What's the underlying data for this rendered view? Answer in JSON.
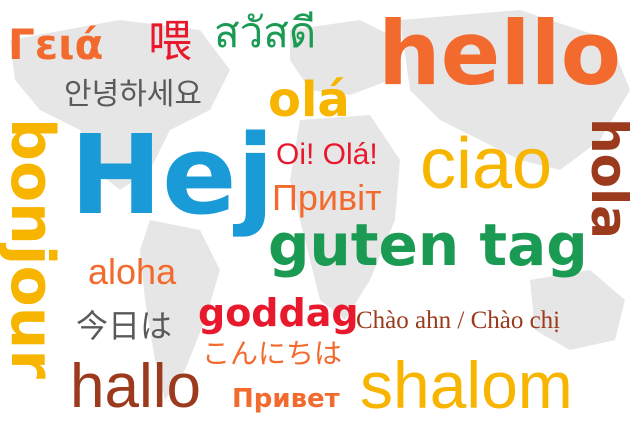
{
  "colors": {
    "blue": "#1a9bd7",
    "orange": "#f26a2e",
    "yellow": "#f7b500",
    "green": "#1a9a52",
    "red": "#e8192c",
    "brown": "#9b3a1c",
    "gray": "#5a5a5a",
    "map": "#e6e6e6"
  },
  "words": {
    "greek": "Γειά",
    "chinese": "喂",
    "thai": "สวัสดี",
    "hello": "hello",
    "korean": "안녕하세요",
    "ola": "olá",
    "bonjour": "bonjour",
    "hej": "Hej",
    "oi_ola": "Oi! Olá!",
    "ciao": "ciao",
    "hola": "hola",
    "pryvit": "Привіт",
    "guten_tag": "guten tag",
    "aloha": "aloha",
    "japanese_1": "今日は",
    "goddag": "goddag",
    "chao": "Chào ahn / Chào chị",
    "japanese_2": "こんにちは",
    "hallo": "hallo",
    "privet": "Привет",
    "shalom": "shalom"
  }
}
